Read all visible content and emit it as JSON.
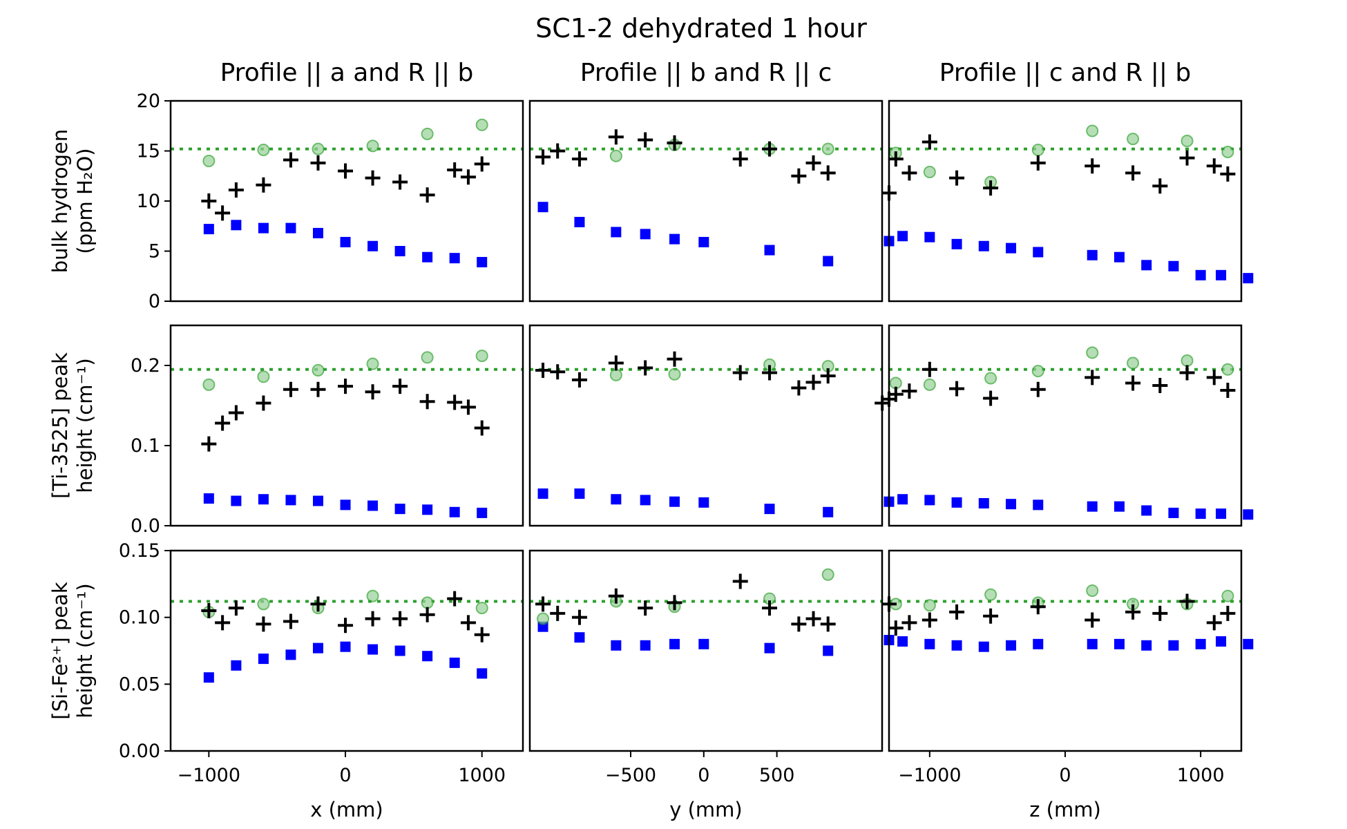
{
  "figure": {
    "title": "SC1-2 dehydrated 1 hour",
    "column_titles": [
      "Profile || a and R || b",
      "Profile || b and R || c",
      "Profile || c and R || b"
    ],
    "row_ylabels": [
      [
        "bulk hydrogen",
        "(ppm H₂O)"
      ],
      [
        "[Ti-3525] peak",
        "height (cm⁻¹)"
      ],
      [
        "[Si-Fe²⁺] peak",
        "height (cm⁻¹)"
      ]
    ],
    "xlabels": [
      "x (mm)",
      "y (mm)",
      "z (mm)"
    ]
  },
  "colors": {
    "blue": "#0000ff",
    "black": "#000000",
    "green": "#2ca02c",
    "green_light": "#98d198"
  },
  "chart_data": {
    "type": "scatter",
    "rows": [
      {
        "ylim": [
          0,
          20
        ],
        "yticks": [
          "0",
          "5",
          "10",
          "15",
          "20"
        ],
        "ytick_values": [
          0,
          5,
          10,
          15,
          20
        ],
        "reference_line": 15.2
      },
      {
        "ylim": [
          0,
          0.25
        ],
        "yticks": [
          "0.0",
          "0.1",
          "0.2"
        ],
        "ytick_values": [
          0,
          0.1,
          0.2
        ],
        "reference_line": 0.195
      },
      {
        "ylim": [
          0,
          0.15
        ],
        "yticks": [
          "0.00",
          "0.05",
          "0.10",
          "0.15"
        ],
        "ytick_values": [
          0,
          0.05,
          0.1,
          0.15
        ],
        "reference_line": 0.112
      }
    ],
    "columns": [
      {
        "xlim": [
          -1280,
          1300
        ],
        "xticks": [
          "−1000",
          "0",
          "1000"
        ],
        "xtick_values": [
          -1000,
          0,
          1000
        ]
      },
      {
        "xlim": [
          -1190,
          1220
        ],
        "xticks": [
          "−500",
          "0",
          "500"
        ],
        "xtick_values": [
          -500,
          0,
          500
        ]
      },
      {
        "xlim": [
          -1300,
          1300
        ],
        "xticks": [
          "−1000",
          "0",
          "1000"
        ],
        "xtick_values": [
          -1000,
          0,
          1000
        ]
      }
    ],
    "panels": [
      {
        "row": 0,
        "col": 0,
        "blue_square": [
          [
            -1000,
            7.2
          ],
          [
            -800,
            7.6
          ],
          [
            -600,
            7.3
          ],
          [
            -400,
            7.3
          ],
          [
            -200,
            6.8
          ],
          [
            0,
            5.9
          ],
          [
            200,
            5.5
          ],
          [
            400,
            5.0
          ],
          [
            600,
            4.4
          ],
          [
            800,
            4.3
          ],
          [
            1000,
            3.9
          ]
        ],
        "black_plus": [
          [
            -1000,
            10.0
          ],
          [
            -900,
            8.8
          ],
          [
            -800,
            11.1
          ],
          [
            -600,
            11.6
          ],
          [
            -400,
            14.1
          ],
          [
            -200,
            13.8
          ],
          [
            0,
            13.0
          ],
          [
            200,
            12.3
          ],
          [
            400,
            11.9
          ],
          [
            600,
            10.6
          ],
          [
            800,
            13.1
          ],
          [
            900,
            12.4
          ],
          [
            1000,
            13.7
          ]
        ],
        "green_circle": [
          [
            -1000,
            14.0
          ],
          [
            -600,
            15.1
          ],
          [
            -200,
            15.2
          ],
          [
            200,
            15.5
          ],
          [
            600,
            16.7
          ],
          [
            1000,
            17.6
          ]
        ]
      },
      {
        "row": 0,
        "col": 1,
        "blue_square": [
          [
            -1100,
            9.4
          ],
          [
            -850,
            7.9
          ],
          [
            -600,
            6.9
          ],
          [
            -400,
            6.7
          ],
          [
            -200,
            6.2
          ],
          [
            0,
            5.9
          ],
          [
            450,
            5.1
          ],
          [
            850,
            4.0
          ]
        ],
        "black_plus": [
          [
            -1100,
            14.4
          ],
          [
            -1000,
            15.0
          ],
          [
            -850,
            14.2
          ],
          [
            -600,
            16.4
          ],
          [
            -400,
            16.1
          ],
          [
            -200,
            15.8
          ],
          [
            250,
            14.2
          ],
          [
            450,
            15.2
          ],
          [
            650,
            12.5
          ],
          [
            750,
            13.8
          ],
          [
            850,
            12.8
          ]
        ],
        "green_circle": [
          [
            -600,
            14.5
          ],
          [
            -200,
            15.6
          ],
          [
            450,
            15.2
          ],
          [
            850,
            15.2
          ]
        ]
      },
      {
        "row": 0,
        "col": 2,
        "blue_square": [
          [
            -1300,
            6.0
          ],
          [
            -1200,
            6.5
          ],
          [
            -1000,
            6.4
          ],
          [
            -800,
            5.7
          ],
          [
            -600,
            5.5
          ],
          [
            -400,
            5.3
          ],
          [
            -200,
            4.9
          ],
          [
            200,
            4.6
          ],
          [
            400,
            4.4
          ],
          [
            600,
            3.6
          ],
          [
            800,
            3.5
          ],
          [
            1000,
            2.6
          ],
          [
            1150,
            2.6
          ],
          [
            1350,
            2.3
          ]
        ],
        "black_plus": [
          [
            -1300,
            10.8
          ],
          [
            -1250,
            14.2
          ],
          [
            -1150,
            12.8
          ],
          [
            -1000,
            15.9
          ],
          [
            -800,
            12.3
          ],
          [
            -550,
            11.3
          ],
          [
            -200,
            13.8
          ],
          [
            200,
            13.5
          ],
          [
            500,
            12.8
          ],
          [
            700,
            11.5
          ],
          [
            900,
            14.3
          ],
          [
            1100,
            13.5
          ],
          [
            1200,
            12.7
          ]
        ],
        "green_circle": [
          [
            -1250,
            14.8
          ],
          [
            -1000,
            12.9
          ],
          [
            -550,
            11.9
          ],
          [
            -200,
            15.1
          ],
          [
            200,
            17.0
          ],
          [
            500,
            16.2
          ],
          [
            900,
            16.0
          ],
          [
            1200,
            14.9
          ]
        ]
      },
      {
        "row": 1,
        "col": 0,
        "blue_square": [
          [
            -1000,
            0.034
          ],
          [
            -800,
            0.031
          ],
          [
            -600,
            0.033
          ],
          [
            -400,
            0.032
          ],
          [
            -200,
            0.031
          ],
          [
            0,
            0.026
          ],
          [
            200,
            0.025
          ],
          [
            400,
            0.021
          ],
          [
            600,
            0.02
          ],
          [
            800,
            0.017
          ],
          [
            1000,
            0.016
          ]
        ],
        "black_plus": [
          [
            -1000,
            0.102
          ],
          [
            -900,
            0.128
          ],
          [
            -800,
            0.141
          ],
          [
            -600,
            0.153
          ],
          [
            -400,
            0.17
          ],
          [
            -200,
            0.17
          ],
          [
            0,
            0.174
          ],
          [
            200,
            0.167
          ],
          [
            400,
            0.174
          ],
          [
            600,
            0.155
          ],
          [
            800,
            0.154
          ],
          [
            900,
            0.148
          ],
          [
            1000,
            0.122
          ]
        ],
        "green_circle": [
          [
            -1000,
            0.176
          ],
          [
            -600,
            0.186
          ],
          [
            -200,
            0.194
          ],
          [
            200,
            0.202
          ],
          [
            600,
            0.21
          ],
          [
            1000,
            0.212
          ]
        ]
      },
      {
        "row": 1,
        "col": 1,
        "blue_square": [
          [
            -1100,
            0.04
          ],
          [
            -850,
            0.04
          ],
          [
            -600,
            0.033
          ],
          [
            -400,
            0.032
          ],
          [
            -200,
            0.03
          ],
          [
            0,
            0.029
          ],
          [
            450,
            0.021
          ],
          [
            850,
            0.017
          ]
        ],
        "black_plus": [
          [
            -1100,
            0.194
          ],
          [
            -1000,
            0.192
          ],
          [
            -850,
            0.182
          ],
          [
            -600,
            0.203
          ],
          [
            -400,
            0.197
          ],
          [
            -200,
            0.208
          ],
          [
            250,
            0.191
          ],
          [
            450,
            0.191
          ],
          [
            650,
            0.172
          ],
          [
            750,
            0.179
          ],
          [
            850,
            0.187
          ]
        ],
        "green_circle": [
          [
            -600,
            0.188
          ],
          [
            -200,
            0.189
          ],
          [
            450,
            0.201
          ],
          [
            850,
            0.199
          ]
        ]
      },
      {
        "row": 1,
        "col": 2,
        "blue_square": [
          [
            -1300,
            0.03
          ],
          [
            -1200,
            0.033
          ],
          [
            -1000,
            0.032
          ],
          [
            -800,
            0.029
          ],
          [
            -600,
            0.028
          ],
          [
            -400,
            0.027
          ],
          [
            -200,
            0.026
          ],
          [
            200,
            0.024
          ],
          [
            400,
            0.024
          ],
          [
            600,
            0.019
          ],
          [
            800,
            0.016
          ],
          [
            1000,
            0.015
          ],
          [
            1150,
            0.015
          ],
          [
            1350,
            0.014
          ]
        ],
        "black_plus": [
          [
            -1350,
            0.153
          ],
          [
            -1300,
            0.158
          ],
          [
            -1250,
            0.164
          ],
          [
            -1150,
            0.168
          ],
          [
            -1000,
            0.195
          ],
          [
            -800,
            0.171
          ],
          [
            -550,
            0.159
          ],
          [
            -200,
            0.17
          ],
          [
            200,
            0.185
          ],
          [
            500,
            0.178
          ],
          [
            700,
            0.175
          ],
          [
            900,
            0.191
          ],
          [
            1100,
            0.185
          ],
          [
            1200,
            0.169
          ]
        ],
        "green_circle": [
          [
            -1250,
            0.178
          ],
          [
            -1000,
            0.176
          ],
          [
            -550,
            0.184
          ],
          [
            -200,
            0.193
          ],
          [
            200,
            0.216
          ],
          [
            500,
            0.203
          ],
          [
            900,
            0.206
          ],
          [
            1200,
            0.195
          ]
        ]
      },
      {
        "row": 2,
        "col": 0,
        "blue_square": [
          [
            -1000,
            0.055
          ],
          [
            -800,
            0.064
          ],
          [
            -600,
            0.069
          ],
          [
            -400,
            0.072
          ],
          [
            -200,
            0.077
          ],
          [
            0,
            0.078
          ],
          [
            200,
            0.076
          ],
          [
            400,
            0.075
          ],
          [
            600,
            0.071
          ],
          [
            800,
            0.066
          ],
          [
            1000,
            0.058
          ]
        ],
        "black_plus": [
          [
            -1000,
            0.105
          ],
          [
            -900,
            0.096
          ],
          [
            -800,
            0.107
          ],
          [
            -600,
            0.095
          ],
          [
            -400,
            0.097
          ],
          [
            -200,
            0.11
          ],
          [
            0,
            0.094
          ],
          [
            200,
            0.099
          ],
          [
            400,
            0.099
          ],
          [
            600,
            0.102
          ],
          [
            800,
            0.114
          ],
          [
            900,
            0.096
          ],
          [
            1000,
            0.087
          ]
        ],
        "green_circle": [
          [
            -1000,
            0.104
          ],
          [
            -600,
            0.11
          ],
          [
            -200,
            0.107
          ],
          [
            200,
            0.116
          ],
          [
            600,
            0.111
          ],
          [
            1000,
            0.107
          ]
        ]
      },
      {
        "row": 2,
        "col": 1,
        "blue_square": [
          [
            -1100,
            0.093
          ],
          [
            -850,
            0.085
          ],
          [
            -600,
            0.079
          ],
          [
            -400,
            0.079
          ],
          [
            -200,
            0.08
          ],
          [
            0,
            0.08
          ],
          [
            450,
            0.077
          ],
          [
            850,
            0.075
          ]
        ],
        "black_plus": [
          [
            -1100,
            0.11
          ],
          [
            -1000,
            0.103
          ],
          [
            -850,
            0.1
          ],
          [
            -600,
            0.116
          ],
          [
            -400,
            0.107
          ],
          [
            -200,
            0.111
          ],
          [
            250,
            0.127
          ],
          [
            450,
            0.107
          ],
          [
            650,
            0.095
          ],
          [
            750,
            0.099
          ],
          [
            850,
            0.095
          ]
        ],
        "green_circle": [
          [
            -1100,
            0.099
          ],
          [
            -600,
            0.112
          ],
          [
            -200,
            0.108
          ],
          [
            450,
            0.114
          ],
          [
            850,
            0.132
          ]
        ]
      },
      {
        "row": 2,
        "col": 2,
        "blue_square": [
          [
            -1300,
            0.083
          ],
          [
            -1200,
            0.082
          ],
          [
            -1000,
            0.08
          ],
          [
            -800,
            0.079
          ],
          [
            -600,
            0.078
          ],
          [
            -400,
            0.079
          ],
          [
            -200,
            0.08
          ],
          [
            200,
            0.08
          ],
          [
            400,
            0.08
          ],
          [
            600,
            0.079
          ],
          [
            800,
            0.079
          ],
          [
            1000,
            0.08
          ],
          [
            1150,
            0.082
          ],
          [
            1350,
            0.08
          ]
        ],
        "black_plus": [
          [
            -1300,
            0.11
          ],
          [
            -1250,
            0.092
          ],
          [
            -1150,
            0.096
          ],
          [
            -1000,
            0.098
          ],
          [
            -800,
            0.104
          ],
          [
            -550,
            0.101
          ],
          [
            -200,
            0.108
          ],
          [
            200,
            0.098
          ],
          [
            500,
            0.104
          ],
          [
            700,
            0.103
          ],
          [
            900,
            0.112
          ],
          [
            1100,
            0.096
          ],
          [
            1200,
            0.103
          ]
        ],
        "green_circle": [
          [
            -1250,
            0.11
          ],
          [
            -1000,
            0.109
          ],
          [
            -550,
            0.117
          ],
          [
            -200,
            0.111
          ],
          [
            200,
            0.12
          ],
          [
            500,
            0.11
          ],
          [
            900,
            0.11
          ],
          [
            1200,
            0.116
          ]
        ]
      }
    ]
  }
}
